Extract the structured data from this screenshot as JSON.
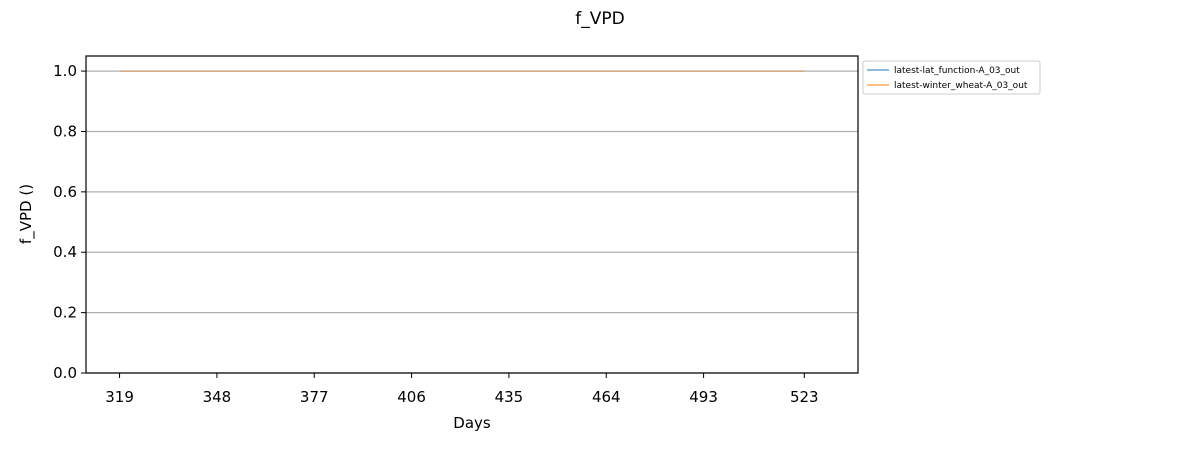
{
  "chart_data": {
    "type": "line",
    "title": "f_VPD",
    "xlabel": "Days",
    "ylabel": "f_VPD ()",
    "x_ticks": [
      "319",
      "348",
      "377",
      "406",
      "435",
      "464",
      "493",
      "523"
    ],
    "y_ticks": [
      "0.0",
      "0.2",
      "0.4",
      "0.6",
      "0.8",
      "1.0"
    ],
    "xlim": [
      309,
      539
    ],
    "ylim": [
      0.0,
      1.05
    ],
    "grid": "horizontal",
    "legend_position": "outside-top-right",
    "series": [
      {
        "name": "latest-lat_function-A_03_out",
        "color": "#1f77b4",
        "x": [
          319,
          523
        ],
        "y": [
          1.0,
          1.0
        ]
      },
      {
        "name": "latest-winter_wheat-A_03_out",
        "color": "#ff7f0e",
        "x": [
          319,
          523
        ],
        "y": [
          1.0,
          1.0
        ]
      }
    ]
  }
}
